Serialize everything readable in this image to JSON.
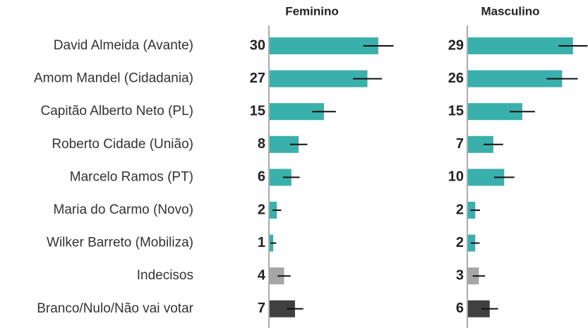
{
  "chart_data": {
    "type": "bar",
    "categories": [
      "David Almeida (Avante)",
      "Amom Mandel (Cidadania)",
      "Capitão Alberto Neto (PL)",
      "Roberto Cidade (União)",
      "Marcelo Ramos (PT)",
      "Maria do Carmo (Novo)",
      "Wilker Barreto (Mobiliza)",
      "Indecisos",
      "Branco/Nulo/Não vai votar"
    ],
    "colors": [
      "#3ab0ad",
      "#3ab0ad",
      "#3ab0ad",
      "#3ab0ad",
      "#3ab0ad",
      "#3ab0ad",
      "#3ab0ad",
      "#a6a6a6",
      "#404040"
    ],
    "series": [
      {
        "name": "Feminino",
        "values": [
          30,
          27,
          15,
          8,
          6,
          2,
          1,
          4,
          7
        ],
        "errors": [
          4.2,
          4,
          3.3,
          2.4,
          2.3,
          1.2,
          0.8,
          1.8,
          2.3
        ]
      },
      {
        "name": "Masculino",
        "values": [
          29,
          26,
          15,
          7,
          10,
          2,
          2,
          3,
          6
        ],
        "errors": [
          4,
          4.3,
          3.5,
          2.7,
          2.8,
          1.3,
          1.2,
          1.7,
          2.3
        ]
      }
    ]
  }
}
